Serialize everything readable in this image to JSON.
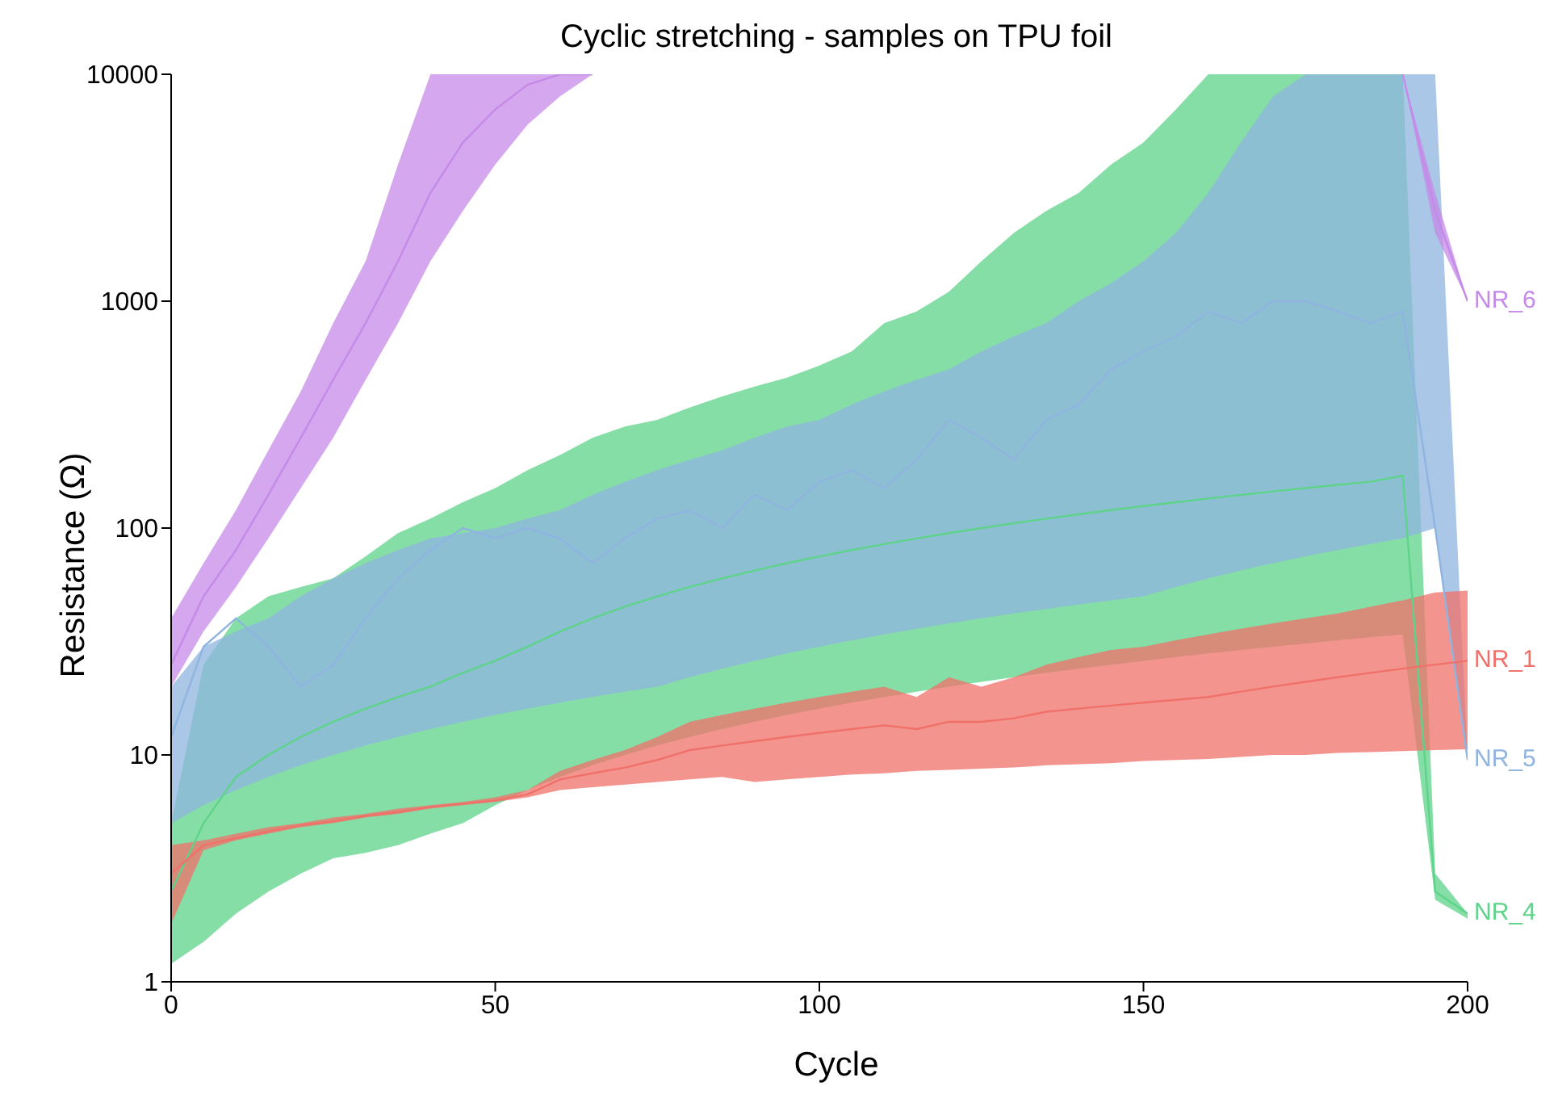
{
  "chart_data": {
    "type": "line",
    "title": "Cyclic stretching - samples on TPU foil",
    "xlabel": "Cycle",
    "ylabel": "Resistance (Ω)",
    "x": [
      0,
      5,
      10,
      15,
      20,
      25,
      30,
      35,
      40,
      45,
      50,
      55,
      60,
      65,
      70,
      75,
      80,
      85,
      90,
      95,
      100,
      105,
      110,
      115,
      120,
      125,
      130,
      135,
      140,
      145,
      150,
      155,
      160,
      165,
      170,
      175,
      180,
      185,
      190,
      195,
      200
    ],
    "series": [
      {
        "name": "NR_4",
        "color": "#5ed38a",
        "values": [
          2.5,
          5,
          8,
          10,
          12,
          14,
          16,
          18,
          20,
          23,
          26,
          30,
          35,
          40,
          45,
          50,
          55,
          60,
          65,
          70,
          75,
          80,
          85,
          90,
          95,
          100,
          105,
          110,
          115,
          120,
          125,
          130,
          135,
          140,
          145,
          150,
          155,
          160,
          170,
          2.5,
          2
        ],
        "lower": [
          1.2,
          1.5,
          2,
          2.5,
          3,
          3.5,
          3.7,
          4,
          4.5,
          5,
          6,
          7,
          8,
          9,
          10,
          11,
          12,
          13,
          14,
          15,
          16,
          17,
          18,
          19,
          20,
          21,
          22,
          23,
          24,
          25,
          26,
          27,
          28,
          29,
          30,
          31,
          32,
          33,
          34,
          2.3,
          1.9
        ],
        "upper": [
          5,
          25,
          40,
          50,
          55,
          60,
          75,
          95,
          110,
          130,
          150,
          180,
          210,
          250,
          280,
          300,
          340,
          380,
          420,
          460,
          520,
          600,
          800,
          900,
          1100,
          1500,
          2000,
          2500,
          3000,
          4000,
          5000,
          7000,
          10000,
          10000,
          10000,
          10000,
          10000,
          10000,
          10000,
          3,
          2
        ]
      },
      {
        "name": "NR_5",
        "color": "#8fb4e0",
        "values": [
          12,
          30,
          40,
          30,
          20,
          25,
          40,
          60,
          80,
          100,
          90,
          100,
          90,
          70,
          90,
          110,
          120,
          100,
          140,
          120,
          160,
          180,
          150,
          200,
          300,
          250,
          200,
          300,
          350,
          500,
          600,
          700,
          900,
          800,
          1000,
          1000,
          900,
          800,
          900,
          100,
          9.5
        ],
        "lower": [
          5,
          6,
          7,
          8,
          9,
          10,
          11,
          12,
          13,
          14,
          15,
          16,
          17,
          18,
          19,
          20,
          22,
          24,
          26,
          28,
          30,
          32,
          34,
          36,
          38,
          40,
          42,
          44,
          46,
          48,
          50,
          55,
          60,
          65,
          70,
          75,
          80,
          85,
          90,
          100,
          9.5
        ],
        "upper": [
          20,
          30,
          35,
          40,
          50,
          60,
          70,
          80,
          90,
          95,
          100,
          110,
          120,
          140,
          160,
          180,
          200,
          220,
          250,
          280,
          300,
          350,
          400,
          450,
          500,
          600,
          700,
          800,
          1000,
          1200,
          1500,
          2000,
          3000,
          5000,
          8000,
          10000,
          10000,
          10000,
          10000,
          10000,
          9.5
        ]
      },
      {
        "name": "NR_1",
        "color": "#f0706a",
        "values": [
          3,
          4,
          4.3,
          4.6,
          4.9,
          5.1,
          5.4,
          5.6,
          5.9,
          6.1,
          6.3,
          6.7,
          7.8,
          8.3,
          8.8,
          9.5,
          10.5,
          11,
          11.5,
          12,
          12.5,
          13,
          13.5,
          13,
          14,
          14,
          14.5,
          15.5,
          16,
          16.5,
          17,
          17.5,
          18,
          19,
          20,
          21,
          22,
          23,
          24,
          25,
          26
        ],
        "lower": [
          1.8,
          3.8,
          4.2,
          4.5,
          4.8,
          5,
          5.3,
          5.5,
          5.8,
          6,
          6.2,
          6.5,
          7,
          7.2,
          7.4,
          7.6,
          7.8,
          8,
          7.6,
          7.8,
          8,
          8.2,
          8.3,
          8.5,
          8.6,
          8.7,
          8.8,
          9,
          9.1,
          9.2,
          9.4,
          9.5,
          9.6,
          9.8,
          10,
          10,
          10.2,
          10.3,
          10.4,
          10.5,
          10.6
        ],
        "upper": [
          4,
          4.2,
          4.5,
          4.8,
          5,
          5.3,
          5.5,
          5.8,
          6,
          6.2,
          6.5,
          7,
          8.5,
          9.5,
          10.5,
          12,
          14,
          15,
          16,
          17,
          18,
          19,
          20,
          18,
          22,
          20,
          22,
          25,
          27,
          29,
          30,
          32,
          34,
          36,
          38,
          40,
          42,
          45,
          48,
          52,
          53
        ]
      },
      {
        "name": "NR_6",
        "color": "#c58ae8",
        "values": [
          25,
          50,
          80,
          140,
          250,
          450,
          800,
          1500,
          3000,
          5000,
          7000,
          9000,
          10000,
          10000,
          null,
          null,
          null,
          null,
          null,
          null,
          null,
          null,
          null,
          null,
          null,
          null,
          null,
          null,
          null,
          null,
          null,
          null,
          null,
          null,
          null,
          null,
          null,
          null,
          10000,
          2500,
          1000
        ],
        "lower": [
          20,
          35,
          55,
          90,
          150,
          250,
          450,
          800,
          1500,
          2500,
          4000,
          6000,
          8000,
          10000,
          null,
          null,
          null,
          null,
          null,
          null,
          null,
          null,
          null,
          null,
          null,
          null,
          null,
          null,
          null,
          null,
          null,
          null,
          null,
          null,
          null,
          null,
          null,
          null,
          10000,
          2000,
          1000
        ],
        "upper": [
          40,
          70,
          120,
          220,
          400,
          800,
          1500,
          4000,
          10000,
          10000,
          10000,
          10000,
          10000,
          10000,
          null,
          null,
          null,
          null,
          null,
          null,
          null,
          null,
          null,
          null,
          null,
          null,
          null,
          null,
          null,
          null,
          null,
          null,
          null,
          null,
          null,
          null,
          null,
          null,
          10000,
          3000,
          1000
        ]
      }
    ],
    "xlim": [
      0,
      200
    ],
    "xticks": [
      0,
      50,
      100,
      150,
      200
    ],
    "ylim": [
      1,
      10000
    ],
    "yticks": [
      1,
      10,
      100,
      1000,
      10000
    ],
    "log": "y",
    "marker": "none",
    "line_style": "solid"
  }
}
